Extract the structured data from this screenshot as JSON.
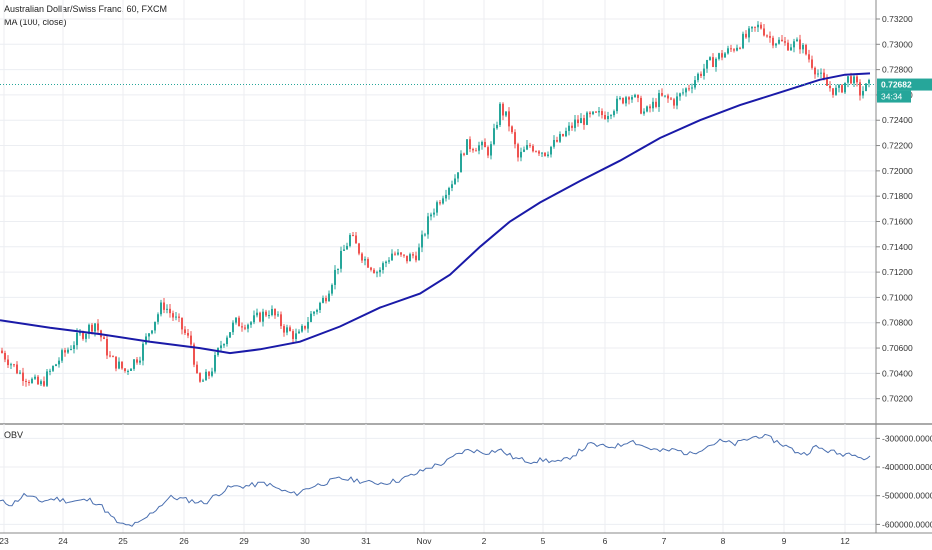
{
  "chart_data": [
    {
      "type": "candlestick",
      "title": "Australian Dollar/Swiss Franc, 60, FXCM",
      "indicator_label": "MA (100, close)",
      "ylim": [
        0.7,
        0.7335
      ],
      "y_ticks": [
        "0.73200",
        "0.73000",
        "0.72800",
        "0.72600",
        "0.72400",
        "0.72200",
        "0.72000",
        "0.71800",
        "0.71600",
        "0.71400",
        "0.71200",
        "0.71000",
        "0.70800",
        "0.70600",
        "0.70400",
        "0.70200"
      ],
      "x_ticks": [
        "23",
        "24",
        "25",
        "26",
        "29",
        "30",
        "31",
        "Nov",
        "2",
        "5",
        "6",
        "7",
        "8",
        "9",
        "12"
      ],
      "last_price": "0.72682",
      "countdown": "34:34",
      "up_color": "#26a69a",
      "down_color": "#ef5350",
      "ma_color": "#1a1aa8",
      "close_path": [
        {
          "x": 0,
          "y": 0.7058
        },
        {
          "x": 20,
          "y": 0.704
        },
        {
          "x": 40,
          "y": 0.703
        },
        {
          "x": 60,
          "y": 0.7052
        },
        {
          "x": 80,
          "y": 0.707
        },
        {
          "x": 95,
          "y": 0.708
        },
        {
          "x": 110,
          "y": 0.7052
        },
        {
          "x": 125,
          "y": 0.7042
        },
        {
          "x": 140,
          "y": 0.7055
        },
        {
          "x": 150,
          "y": 0.7075
        },
        {
          "x": 163,
          "y": 0.7095
        },
        {
          "x": 180,
          "y": 0.7078
        },
        {
          "x": 192,
          "y": 0.7062
        },
        {
          "x": 198,
          "y": 0.703
        },
        {
          "x": 210,
          "y": 0.704
        },
        {
          "x": 222,
          "y": 0.7065
        },
        {
          "x": 235,
          "y": 0.708
        },
        {
          "x": 250,
          "y": 0.708
        },
        {
          "x": 270,
          "y": 0.709
        },
        {
          "x": 285,
          "y": 0.7075
        },
        {
          "x": 298,
          "y": 0.7068
        },
        {
          "x": 310,
          "y": 0.7085
        },
        {
          "x": 325,
          "y": 0.71
        },
        {
          "x": 340,
          "y": 0.713
        },
        {
          "x": 350,
          "y": 0.7148
        },
        {
          "x": 365,
          "y": 0.713
        },
        {
          "x": 378,
          "y": 0.712
        },
        {
          "x": 392,
          "y": 0.7135
        },
        {
          "x": 405,
          "y": 0.713
        },
        {
          "x": 418,
          "y": 0.7135
        },
        {
          "x": 430,
          "y": 0.7165
        },
        {
          "x": 445,
          "y": 0.7185
        },
        {
          "x": 455,
          "y": 0.7195
        },
        {
          "x": 465,
          "y": 0.722
        },
        {
          "x": 478,
          "y": 0.722
        },
        {
          "x": 490,
          "y": 0.7215
        },
        {
          "x": 500,
          "y": 0.725
        },
        {
          "x": 508,
          "y": 0.724
        },
        {
          "x": 518,
          "y": 0.721
        },
        {
          "x": 530,
          "y": 0.722
        },
        {
          "x": 545,
          "y": 0.7215
        },
        {
          "x": 560,
          "y": 0.7225
        },
        {
          "x": 575,
          "y": 0.7238
        },
        {
          "x": 590,
          "y": 0.7242
        },
        {
          "x": 605,
          "y": 0.7245
        },
        {
          "x": 620,
          "y": 0.7255
        },
        {
          "x": 630,
          "y": 0.7262
        },
        {
          "x": 645,
          "y": 0.7245
        },
        {
          "x": 660,
          "y": 0.7258
        },
        {
          "x": 675,
          "y": 0.7255
        },
        {
          "x": 690,
          "y": 0.7268
        },
        {
          "x": 705,
          "y": 0.7282
        },
        {
          "x": 718,
          "y": 0.729
        },
        {
          "x": 730,
          "y": 0.7295
        },
        {
          "x": 745,
          "y": 0.7305
        },
        {
          "x": 760,
          "y": 0.7315
        },
        {
          "x": 770,
          "y": 0.7305
        },
        {
          "x": 785,
          "y": 0.73
        },
        {
          "x": 800,
          "y": 0.73
        },
        {
          "x": 812,
          "y": 0.7285
        },
        {
          "x": 825,
          "y": 0.7268
        },
        {
          "x": 838,
          "y": 0.7262
        },
        {
          "x": 850,
          "y": 0.7275
        },
        {
          "x": 860,
          "y": 0.7262
        },
        {
          "x": 870,
          "y": 0.7268
        }
      ],
      "ma_path": [
        {
          "x": 0,
          "y": 0.7082
        },
        {
          "x": 50,
          "y": 0.7076
        },
        {
          "x": 100,
          "y": 0.7071
        },
        {
          "x": 150,
          "y": 0.7065
        },
        {
          "x": 200,
          "y": 0.706
        },
        {
          "x": 230,
          "y": 0.7056
        },
        {
          "x": 260,
          "y": 0.7059
        },
        {
          "x": 300,
          "y": 0.7065
        },
        {
          "x": 340,
          "y": 0.7077
        },
        {
          "x": 380,
          "y": 0.7092
        },
        {
          "x": 420,
          "y": 0.7103
        },
        {
          "x": 450,
          "y": 0.7118
        },
        {
          "x": 480,
          "y": 0.714
        },
        {
          "x": 510,
          "y": 0.716
        },
        {
          "x": 540,
          "y": 0.7175
        },
        {
          "x": 580,
          "y": 0.7192
        },
        {
          "x": 620,
          "y": 0.7208
        },
        {
          "x": 660,
          "y": 0.7226
        },
        {
          "x": 700,
          "y": 0.724
        },
        {
          "x": 740,
          "y": 0.7252
        },
        {
          "x": 780,
          "y": 0.7262
        },
        {
          "x": 820,
          "y": 0.7272
        },
        {
          "x": 845,
          "y": 0.7276
        },
        {
          "x": 870,
          "y": 0.7277
        }
      ]
    },
    {
      "type": "line",
      "title": "OBV",
      "ylim": [
        -630000,
        -250000
      ],
      "y_ticks": [
        "-300000.000000",
        "-400000.000000",
        "-500000.000000",
        "-600000.000000"
      ],
      "line_color": "#4a6fb0",
      "path": [
        {
          "x": 0,
          "y": -520000
        },
        {
          "x": 12,
          "y": -530000
        },
        {
          "x": 25,
          "y": -495000
        },
        {
          "x": 40,
          "y": -520000
        },
        {
          "x": 55,
          "y": -510000
        },
        {
          "x": 70,
          "y": -520000
        },
        {
          "x": 90,
          "y": -515000
        },
        {
          "x": 100,
          "y": -530000
        },
        {
          "x": 110,
          "y": -570000
        },
        {
          "x": 120,
          "y": -600000
        },
        {
          "x": 130,
          "y": -605000
        },
        {
          "x": 140,
          "y": -595000
        },
        {
          "x": 150,
          "y": -565000
        },
        {
          "x": 160,
          "y": -535000
        },
        {
          "x": 170,
          "y": -505000
        },
        {
          "x": 180,
          "y": -510000
        },
        {
          "x": 195,
          "y": -520000
        },
        {
          "x": 205,
          "y": -525000
        },
        {
          "x": 215,
          "y": -500000
        },
        {
          "x": 230,
          "y": -470000
        },
        {
          "x": 250,
          "y": -465000
        },
        {
          "x": 265,
          "y": -455000
        },
        {
          "x": 280,
          "y": -480000
        },
        {
          "x": 295,
          "y": -495000
        },
        {
          "x": 310,
          "y": -470000
        },
        {
          "x": 325,
          "y": -455000
        },
        {
          "x": 340,
          "y": -440000
        },
        {
          "x": 355,
          "y": -445000
        },
        {
          "x": 370,
          "y": -455000
        },
        {
          "x": 385,
          "y": -455000
        },
        {
          "x": 400,
          "y": -445000
        },
        {
          "x": 415,
          "y": -425000
        },
        {
          "x": 430,
          "y": -400000
        },
        {
          "x": 445,
          "y": -385000
        },
        {
          "x": 460,
          "y": -350000
        },
        {
          "x": 470,
          "y": -340000
        },
        {
          "x": 485,
          "y": -350000
        },
        {
          "x": 500,
          "y": -340000
        },
        {
          "x": 515,
          "y": -370000
        },
        {
          "x": 530,
          "y": -380000
        },
        {
          "x": 545,
          "y": -375000
        },
        {
          "x": 560,
          "y": -385000
        },
        {
          "x": 575,
          "y": -355000
        },
        {
          "x": 590,
          "y": -320000
        },
        {
          "x": 605,
          "y": -330000
        },
        {
          "x": 620,
          "y": -325000
        },
        {
          "x": 630,
          "y": -305000
        },
        {
          "x": 645,
          "y": -330000
        },
        {
          "x": 660,
          "y": -345000
        },
        {
          "x": 675,
          "y": -340000
        },
        {
          "x": 690,
          "y": -355000
        },
        {
          "x": 705,
          "y": -330000
        },
        {
          "x": 720,
          "y": -310000
        },
        {
          "x": 735,
          "y": -320000
        },
        {
          "x": 750,
          "y": -300000
        },
        {
          "x": 760,
          "y": -290000
        },
        {
          "x": 770,
          "y": -300000
        },
        {
          "x": 785,
          "y": -325000
        },
        {
          "x": 795,
          "y": -345000
        },
        {
          "x": 805,
          "y": -355000
        },
        {
          "x": 815,
          "y": -330000
        },
        {
          "x": 825,
          "y": -340000
        },
        {
          "x": 840,
          "y": -355000
        },
        {
          "x": 855,
          "y": -350000
        },
        {
          "x": 865,
          "y": -375000
        },
        {
          "x": 870,
          "y": -360000
        }
      ]
    }
  ]
}
